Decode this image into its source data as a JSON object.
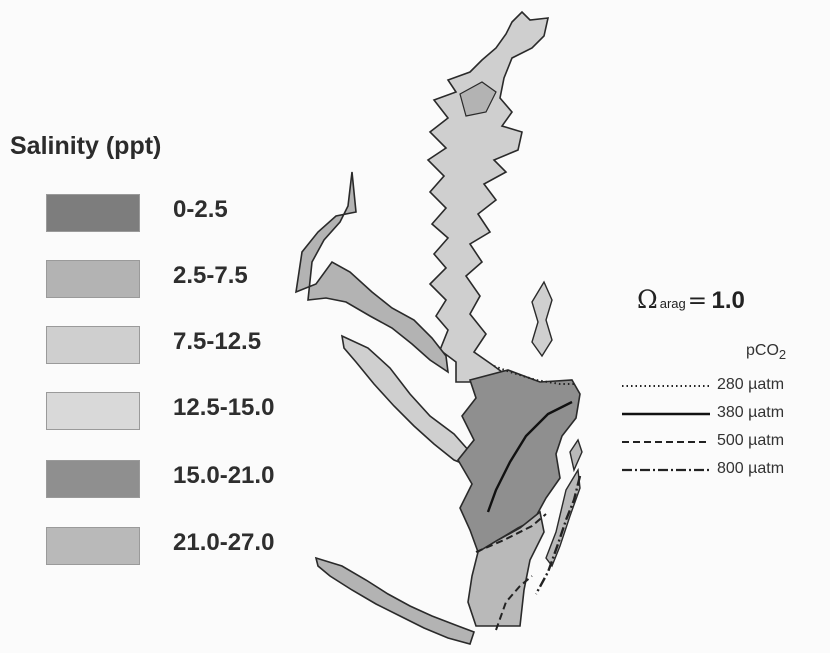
{
  "legend": {
    "title": "Salinity (ppt)",
    "items": [
      {
        "label": "0-2.5",
        "color": "#7d7d7d"
      },
      {
        "label": "2.5-7.5",
        "color": "#b3b3b3"
      },
      {
        "label": "7.5-12.5",
        "color": "#cfcfcf"
      },
      {
        "label": "12.5-15.0",
        "color": "#d9d9d9"
      },
      {
        "label": "15.0-21.0",
        "color": "#8f8f8f"
      },
      {
        "label": "21.0-27.0",
        "color": "#b9b9b9"
      }
    ]
  },
  "isoline": {
    "omega_symbol": "Ω",
    "omega_subscript": "arag",
    "equals": "=",
    "value": "1.0",
    "pco2_label": "pCO",
    "pco2_subscript": "2",
    "lines": [
      {
        "style": "dotted",
        "label": "280 µatm"
      },
      {
        "style": "solid",
        "label": "380 µatm"
      },
      {
        "style": "dashed",
        "label": "500 µatm"
      },
      {
        "style": "dash-dot",
        "label": "800 µatm"
      }
    ]
  }
}
